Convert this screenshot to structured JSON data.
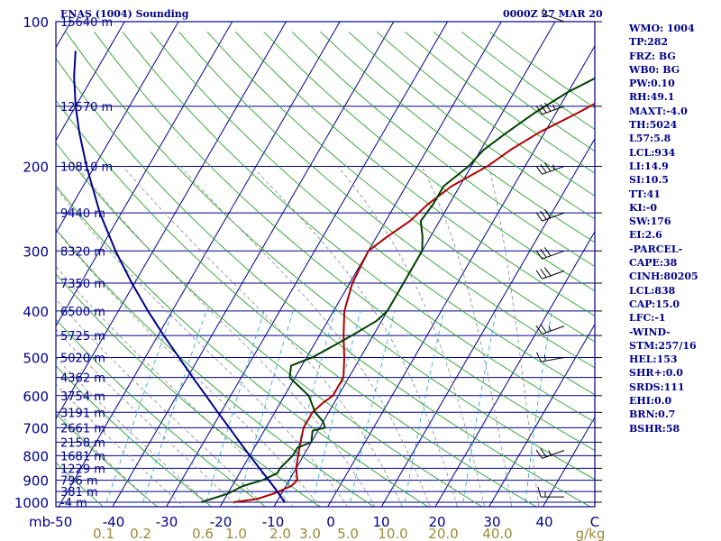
{
  "chart_data": {
    "type": "line",
    "title": "ENAS (1004) Sounding",
    "valid_time": "0000Z 27 MAR 20",
    "y_axis_unit": "mb",
    "pressure_ticks": [
      100,
      200,
      300,
      400,
      500,
      600,
      700,
      800,
      900,
      1000
    ],
    "height_labels": [
      {
        "p": 100,
        "label": "15640 m"
      },
      {
        "p": 150,
        "label": "12570 m"
      },
      {
        "p": 200,
        "label": "10810 m"
      },
      {
        "p": 250,
        "label": "9440 m"
      },
      {
        "p": 300,
        "label": "8320 m"
      },
      {
        "p": 350,
        "label": "7350 m"
      },
      {
        "p": 400,
        "label": "6500 m"
      },
      {
        "p": 450,
        "label": "5725 m"
      },
      {
        "p": 500,
        "label": "5020 m"
      },
      {
        "p": 550,
        "label": "4362 m"
      },
      {
        "p": 600,
        "label": "3754 m"
      },
      {
        "p": 650,
        "label": "3191 m"
      },
      {
        "p": 700,
        "label": "2661 m"
      },
      {
        "p": 750,
        "label": "2158 m"
      },
      {
        "p": 800,
        "label": "1681 m"
      },
      {
        "p": 850,
        "label": "1229 m"
      },
      {
        "p": 900,
        "label": "796 m"
      },
      {
        "p": 950,
        "label": "381 m"
      },
      {
        "p": 1000,
        "label": "-4 m"
      }
    ],
    "temperature_ticks": [
      "-50",
      "-40",
      "-30",
      "-20",
      "-10",
      "0",
      "10",
      "20",
      "30",
      "40",
      "C"
    ],
    "mixing_ratio_ticks": [
      "0.1",
      "0.2",
      "0.6",
      "1.0",
      "2.0",
      "3.0",
      "5.0",
      "10.0",
      "20.0",
      "40.0",
      "g/kg"
    ],
    "xlim_c": [
      -50,
      50
    ],
    "ylim_mb": [
      1000,
      100
    ],
    "series": [
      {
        "key": "temperature",
        "color": "#b00000",
        "p": [
          1000,
          985,
          960,
          925,
          900,
          850,
          800,
          750,
          700,
          650,
          620,
          600,
          550,
          500,
          450,
          400,
          350,
          300,
          280,
          260,
          240,
          220,
          200,
          185,
          170,
          155,
          140,
          130,
          120,
          110,
          100
        ],
        "t": [
          -18,
          -14,
          -11.5,
          -9,
          -8.5,
          -10,
          -11,
          -12,
          -13,
          -13,
          -12,
          -11,
          -11,
          -13,
          -15.5,
          -18,
          -19.5,
          -20,
          -18,
          -15.5,
          -14,
          -11.5,
          -7,
          -4.5,
          -1,
          4,
          9,
          11,
          13.5,
          15,
          18.5
        ]
      },
      {
        "key": "dewpoint",
        "color": "#004000",
        "p": [
          1000,
          960,
          925,
          900,
          870,
          850,
          800,
          770,
          750,
          730,
          710,
          700,
          680,
          650,
          600,
          550,
          520,
          500,
          470,
          450,
          420,
          400,
          350,
          300,
          280,
          260,
          240,
          220,
          200,
          185,
          170,
          155,
          140,
          130,
          120,
          110,
          100
        ],
        "t": [
          -24,
          -20,
          -18,
          -15,
          -13,
          -13,
          -12,
          -12,
          -10,
          -10.5,
          -11,
          -9,
          -10,
          -12.5,
          -15.5,
          -21,
          -22,
          -19,
          -16,
          -14,
          -11,
          -10,
          -10,
          -10,
          -11.5,
          -13.5,
          -13,
          -13,
          -10.5,
          -9.5,
          -7,
          -4,
          0,
          4,
          8,
          10,
          15
        ]
      },
      {
        "key": "parcel",
        "color": "#00008b",
        "p": [
          1000,
          950,
          900,
          850,
          800,
          750,
          700,
          650,
          600,
          550,
          500,
          450,
          400,
          350,
          300,
          250,
          200,
          170,
          150,
          130,
          115
        ],
        "t": [
          -8.5,
          -11,
          -13.8,
          -16.8,
          -20,
          -23.3,
          -26.8,
          -30.6,
          -34.6,
          -39,
          -43.7,
          -48.9,
          -54.5,
          -60.5,
          -67,
          -74,
          -81.5,
          -86.5,
          -90,
          -93.5,
          -96
        ]
      }
    ],
    "wind_barbs": [
      {
        "p": 100,
        "dir": 290,
        "speed": 5
      },
      {
        "p": 150,
        "dir": 250,
        "speed": 35
      },
      {
        "p": 200,
        "dir": 250,
        "speed": 35
      },
      {
        "p": 250,
        "dir": 250,
        "speed": 30
      },
      {
        "p": 300,
        "dir": 250,
        "speed": 30
      },
      {
        "p": 330,
        "dir": 250,
        "speed": 30
      },
      {
        "p": 430,
        "dir": 250,
        "speed": 25
      },
      {
        "p": 500,
        "dir": 260,
        "speed": 15
      },
      {
        "p": 780,
        "dir": 250,
        "speed": 25
      },
      {
        "p": 975,
        "dir": 270,
        "speed": 15
      }
    ],
    "indices": [
      "WMO: 1004",
      "TP:282",
      "FRZ: BG",
      "WB0: BG",
      "PW:0.10",
      "RH:49.1",
      "MAXT:-4.0",
      "TH:5024",
      "L57:5.8",
      "LCL:934",
      "LI:14.9",
      "SI:10.5",
      "TT:41",
      "KI:-0",
      "SW:176",
      "EI:2.6",
      "-PARCEL-",
      "CAPE:38",
      "CINH:80205",
      "LCL:838",
      "CAP:15.0",
      "LFC:-1",
      "-WIND-",
      "STM:257/16",
      "HEL:153",
      "SHR+:0.0",
      "SRDS:111",
      "EHI:0.0",
      "BRN:0.7",
      "BSHR:58"
    ]
  }
}
